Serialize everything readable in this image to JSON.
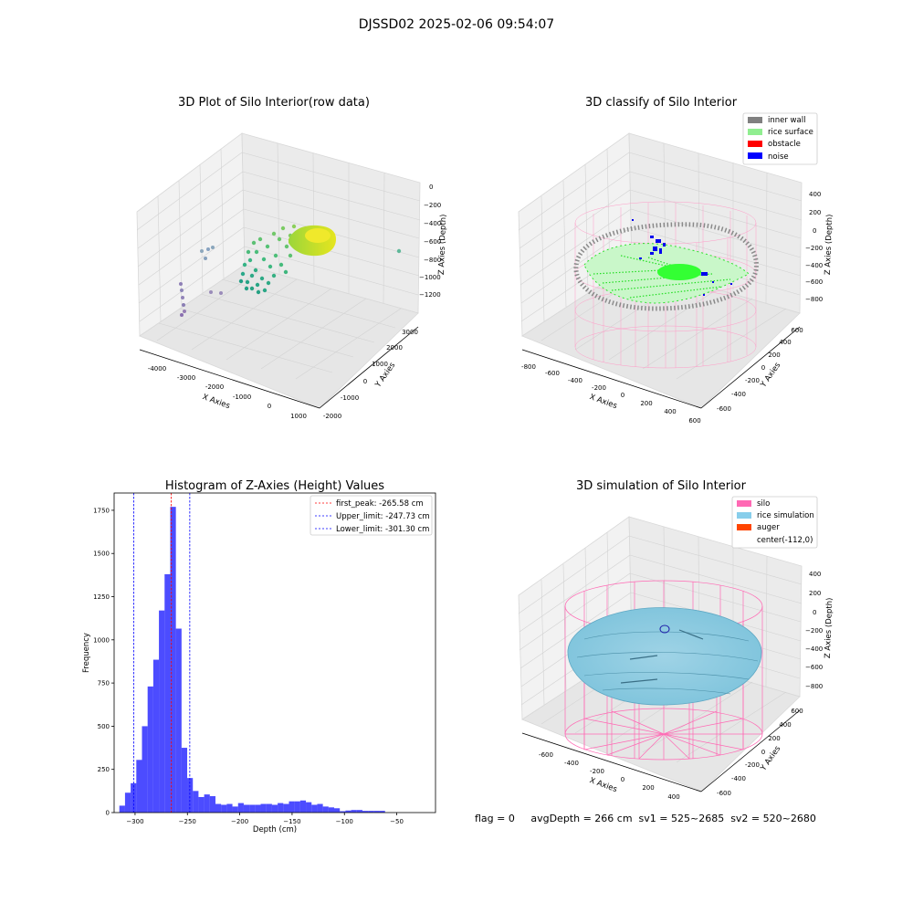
{
  "figure": {
    "suptitle": "DJSSD02 2025-02-06 09:54:07",
    "footer": "flag = 0     avgDepth = 266 cm  sv1 = 525~2685  sv2 = 520~2680"
  },
  "panels": {
    "raw": {
      "title": "3D Plot of Silo Interior(row data)",
      "xlabel": "X Axies",
      "ylabel": "Y Axies",
      "zlabel": "Z Axies (Depth)",
      "xticks": [
        "-4000",
        "-3000",
        "-2000",
        "-1000",
        "0",
        "1000"
      ],
      "yticks": [
        "-2000",
        "-1000",
        "0",
        "1000",
        "2000",
        "3000"
      ],
      "zticks": [
        "0",
        "−200",
        "−400",
        "−600",
        "−800",
        "−1000",
        "−1200"
      ]
    },
    "classify": {
      "title": "3D classify of Silo Interior",
      "xlabel": "X Axies",
      "ylabel": "Y Axies",
      "zlabel": "Z Axies (Depth)",
      "xticks": [
        "-800",
        "-600",
        "-400",
        "-200",
        "0",
        "200",
        "400",
        "600"
      ],
      "yticks": [
        "-600",
        "-400",
        "-200",
        "0",
        "200",
        "400",
        "600"
      ],
      "zticks": [
        "400",
        "200",
        "0",
        "−200",
        "−400",
        "−600",
        "−800"
      ],
      "legend": [
        {
          "label": "inner wall",
          "color": "#808080"
        },
        {
          "label": "rice surface",
          "color": "#90ee90"
        },
        {
          "label": "obstacle",
          "color": "#ff0000"
        },
        {
          "label": "noise",
          "color": "#0000ff"
        }
      ]
    },
    "simulation": {
      "title": "3D simulation of Silo Interior",
      "xlabel": "X Axies",
      "ylabel": "Y Axies",
      "zlabel": "Z Axies (Depth)",
      "xticks": [
        "-600",
        "-400",
        "-200",
        "0",
        "200",
        "400"
      ],
      "yticks": [
        "-600",
        "-400",
        "-200",
        "0",
        "200",
        "400",
        "600"
      ],
      "zticks": [
        "400",
        "200",
        "0",
        "−200",
        "−400",
        "−600",
        "−800"
      ],
      "legend": [
        {
          "label": "silo",
          "color": "#ff69b4"
        },
        {
          "label": "rice simulation",
          "color": "#87ceeb"
        },
        {
          "label": "auger",
          "color": "#ff4500"
        },
        {
          "label": "center(-112,0)",
          "color": "#ffffff"
        }
      ]
    }
  },
  "chart_data": {
    "type": "bar",
    "title": "Histogram of Z-Axies (Height) Values",
    "xlabel": "Depth (cm)",
    "ylabel": "Frequency",
    "xlim": [
      -320,
      -13
    ],
    "ylim": [
      0,
      1850
    ],
    "xticks": [
      -300,
      -250,
      -200,
      -150,
      -100,
      -50
    ],
    "xtick_labels": [
      "−300",
      "−250",
      "−200",
      "−150",
      "−100",
      "−50"
    ],
    "yticks": [
      0,
      250,
      500,
      750,
      1000,
      1250,
      1500,
      1750
    ],
    "bar_color": "#0000ff",
    "bin_start": -315,
    "bin_width": 5.4,
    "values": [
      40,
      115,
      170,
      305,
      500,
      730,
      885,
      1170,
      1380,
      1770,
      1065,
      375,
      200,
      125,
      90,
      105,
      95,
      50,
      45,
      50,
      35,
      55,
      45,
      45,
      45,
      50,
      50,
      45,
      55,
      50,
      65,
      65,
      70,
      60,
      45,
      50,
      35,
      30,
      25,
      8,
      12,
      15,
      15,
      10,
      10,
      10,
      10
    ],
    "lines": [
      {
        "label": "first_peak: -265.58 cm",
        "x": -265.58,
        "color": "#ff0000"
      },
      {
        "label": "Upper_limit: -247.73 cm",
        "x": -247.73,
        "color": "#0000ff"
      },
      {
        "label": "Lower_limit: -301.30 cm",
        "x": -301.3,
        "color": "#0000ff"
      }
    ]
  }
}
